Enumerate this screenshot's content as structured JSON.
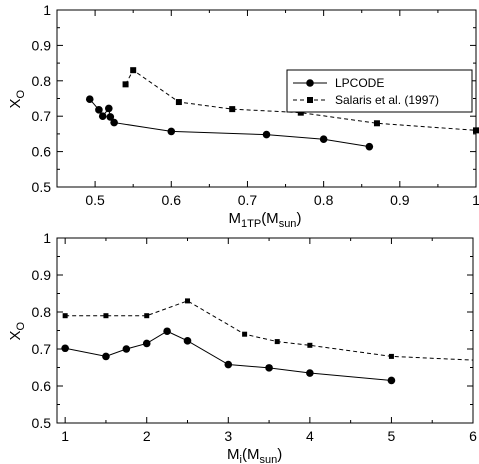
{
  "chart_data": [
    {
      "type": "line",
      "ylabel": "X",
      "ylabel_sub": "O",
      "xlabel": "M",
      "xlabel_sub": "1TP",
      "xlabel_unit": "(M",
      "xlabel_unit_sub": "sun",
      "xlabel_close": ")",
      "xlim": [
        0.45,
        1.0
      ],
      "ylim": [
        0.5,
        1.0
      ],
      "xticks": [
        "0.5",
        "0.6",
        "0.7",
        "0.8",
        "0.9",
        "1"
      ],
      "xtick_values": [
        0.5,
        0.6,
        0.7,
        0.8,
        0.9,
        1.0
      ],
      "yticks": [
        "0.5",
        "0.6",
        "0.7",
        "0.8",
        "0.9",
        "1"
      ],
      "ytick_values": [
        0.5,
        0.6,
        0.7,
        0.8,
        0.9,
        1.0
      ],
      "legend_position": "top-right",
      "series": [
        {
          "name": "LPCODE",
          "style": "solid",
          "marker": "circle",
          "x": [
            0.493,
            0.505,
            0.51,
            0.518,
            0.52,
            0.525,
            0.6,
            0.725,
            0.8,
            0.86
          ],
          "y": [
            0.748,
            0.718,
            0.7,
            0.722,
            0.698,
            0.682,
            0.657,
            0.648,
            0.635,
            0.614
          ]
        },
        {
          "name": "Salaris et al. (1997)",
          "style": "dashed",
          "marker": "square",
          "x": [
            0.54,
            0.55,
            0.61,
            0.68,
            0.77,
            0.87,
            1.0
          ],
          "y": [
            0.79,
            0.83,
            0.74,
            0.72,
            0.71,
            0.68,
            0.66
          ]
        }
      ]
    },
    {
      "type": "line",
      "ylabel": "X",
      "ylabel_sub": "O",
      "xlabel": "M",
      "xlabel_sub": "i",
      "xlabel_unit": "(M",
      "xlabel_unit_sub": "sun",
      "xlabel_close": ")",
      "xlim": [
        0.9,
        6.0
      ],
      "ylim": [
        0.5,
        1.0
      ],
      "xticks": [
        "1",
        "2",
        "3",
        "4",
        "5",
        "6"
      ],
      "xtick_values": [
        1,
        2,
        3,
        4,
        5,
        6
      ],
      "yticks": [
        "0.5",
        "0.6",
        "0.7",
        "0.8",
        "0.9",
        "1"
      ],
      "ytick_values": [
        0.5,
        0.6,
        0.7,
        0.8,
        0.9,
        1.0
      ],
      "series": [
        {
          "name": "LPCODE",
          "style": "solid",
          "marker": "circle",
          "x": [
            1.0,
            1.5,
            1.75,
            2.0,
            2.25,
            2.5,
            3.0,
            3.5,
            4.0,
            5.0
          ],
          "y": [
            0.702,
            0.68,
            0.7,
            0.715,
            0.748,
            0.722,
            0.658,
            0.649,
            0.635,
            0.615
          ]
        },
        {
          "name": "Salaris et al. (1997)",
          "style": "dashed",
          "marker": "square",
          "x": [
            1.0,
            1.5,
            2.0,
            2.5,
            3.2,
            3.6,
            4.0,
            5.0,
            6.0
          ],
          "y": [
            0.79,
            0.79,
            0.79,
            0.83,
            0.74,
            0.72,
            0.71,
            0.68,
            0.67
          ],
          "marker_mask": [
            true,
            true,
            true,
            true,
            true,
            true,
            true,
            true,
            false
          ]
        }
      ]
    }
  ]
}
